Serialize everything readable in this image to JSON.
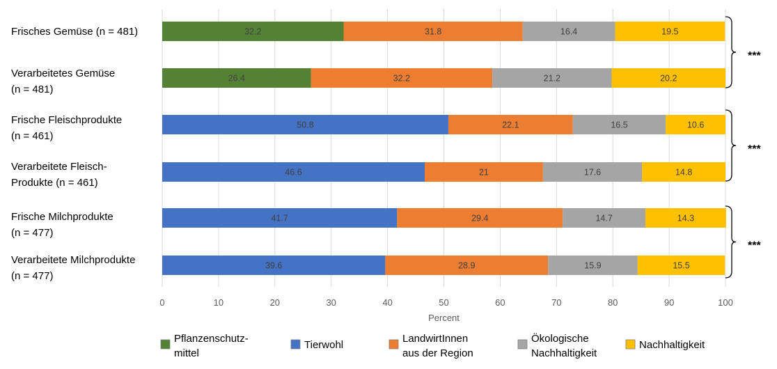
{
  "chart_data": {
    "type": "bar",
    "orientation": "horizontal",
    "stacked": true,
    "xlabel": "Percent",
    "xlim": [
      0,
      100
    ],
    "xticks": [
      "0",
      "10",
      "20",
      "30",
      "40",
      "50",
      "60",
      "70",
      "80",
      "90",
      "100"
    ],
    "grid": "vertical",
    "legend_position": "bottom",
    "categories": [
      [
        "Frisches Gemüse (n = 481)"
      ],
      [
        "Verarbeitetes Gemüse",
        "(n = 481)"
      ],
      [
        "Frische Fleischprodukte",
        "(n = 461)"
      ],
      [
        "Verarbeitete Fleisch-",
        "Produkte (n = 461)"
      ],
      [
        "Frische Milchprodukte",
        "(n = 477)"
      ],
      [
        "Verarbeitete Milchprodukte",
        "(n = 477)"
      ]
    ],
    "series": [
      {
        "name": [
          "Pflanzenschutz-",
          "mittel"
        ],
        "color": "#548235",
        "values": [
          32.2,
          26.4,
          null,
          null,
          null,
          null
        ]
      },
      {
        "name": [
          "Tierwohl"
        ],
        "color": "#4472C4",
        "values": [
          null,
          null,
          50.8,
          46.6,
          41.7,
          39.6
        ]
      },
      {
        "name": [
          "LandwirtInnen",
          "aus der Region"
        ],
        "color": "#ED7D31",
        "values": [
          31.8,
          32.2,
          22.1,
          21,
          29.4,
          28.9
        ]
      },
      {
        "name": [
          "Ökologische",
          "Nachhaltigkeit"
        ],
        "color": "#A5A5A5",
        "values": [
          16.4,
          21.2,
          16.5,
          17.6,
          14.7,
          15.9
        ]
      },
      {
        "name": [
          "Nachhaltigkeit"
        ],
        "color": "#FFC000",
        "values": [
          19.5,
          20.2,
          10.6,
          14.8,
          14.3,
          15.5
        ]
      }
    ],
    "annotations": [
      {
        "text": "***",
        "groups": [
          0,
          1
        ]
      },
      {
        "text": "***",
        "groups": [
          2,
          3
        ]
      },
      {
        "text": "***",
        "groups": [
          4,
          5
        ]
      }
    ]
  }
}
